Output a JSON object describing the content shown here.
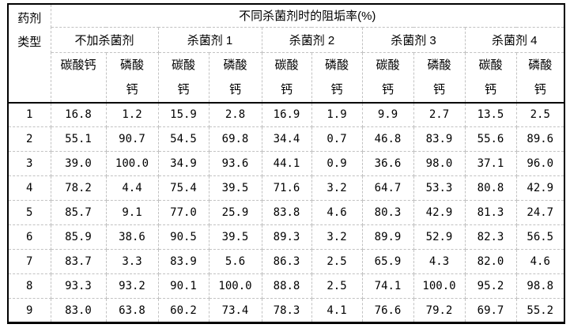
{
  "table": {
    "corner": {
      "lines": [
        "药剂",
        "类型"
      ]
    },
    "main_header": "不同杀菌剂时的阻垢率(%)",
    "groups": [
      {
        "label": "不加杀菌剂",
        "columns": [
          [
            "碳酸钙"
          ],
          [
            "磷酸",
            "钙"
          ]
        ]
      },
      {
        "label": "杀菌剂 1",
        "columns": [
          [
            "碳酸",
            "钙"
          ],
          [
            "磷酸",
            "钙"
          ]
        ]
      },
      {
        "label": "杀菌剂 2",
        "columns": [
          [
            "碳酸",
            "钙"
          ],
          [
            "磷酸",
            "钙"
          ]
        ]
      },
      {
        "label": "杀菌剂 3",
        "columns": [
          [
            "碳酸",
            "钙"
          ],
          [
            "磷酸",
            "钙"
          ]
        ]
      },
      {
        "label": "杀菌剂 4",
        "columns": [
          [
            "碳酸",
            "钙"
          ],
          [
            "磷酸",
            "钙"
          ]
        ]
      }
    ],
    "rows": [
      {
        "id": "1",
        "values": [
          "16.8",
          "1.2",
          "15.9",
          "2.8",
          "16.9",
          "1.9",
          "9.9",
          "2.7",
          "13.5",
          "2.5"
        ]
      },
      {
        "id": "2",
        "values": [
          "55.1",
          "90.7",
          "54.5",
          "69.8",
          "34.4",
          "0.7",
          "46.8",
          "83.9",
          "55.6",
          "89.6"
        ]
      },
      {
        "id": "3",
        "values": [
          "39.0",
          "100.0",
          "34.9",
          "93.6",
          "44.1",
          "0.9",
          "36.6",
          "98.0",
          "37.1",
          "96.0"
        ]
      },
      {
        "id": "4",
        "values": [
          "78.2",
          "4.4",
          "75.4",
          "39.5",
          "71.6",
          "3.2",
          "64.7",
          "53.3",
          "80.8",
          "42.9"
        ]
      },
      {
        "id": "5",
        "values": [
          "85.7",
          "9.1",
          "77.0",
          "25.9",
          "83.8",
          "4.6",
          "80.3",
          "42.9",
          "81.3",
          "24.7"
        ]
      },
      {
        "id": "6",
        "values": [
          "85.9",
          "38.6",
          "90.5",
          "39.5",
          "89.3",
          "3.2",
          "89.9",
          "52.9",
          "82.3",
          "56.5"
        ]
      },
      {
        "id": "7",
        "values": [
          "83.7",
          "3.3",
          "83.9",
          "5.6",
          "86.3",
          "2.5",
          "65.9",
          "4.3",
          "82.0",
          "4.6"
        ]
      },
      {
        "id": "8",
        "values": [
          "93.3",
          "93.2",
          "90.1",
          "100.0",
          "88.8",
          "2.5",
          "74.1",
          "100.0",
          "95.2",
          "98.8"
        ]
      },
      {
        "id": "9",
        "values": [
          "83.0",
          "63.8",
          "60.2",
          "73.4",
          "78.3",
          "4.1",
          "76.6",
          "79.2",
          "69.7",
          "55.2"
        ]
      }
    ],
    "colors": {
      "outer_border": "#000000",
      "grid_line": "#c2c2c2",
      "text": "#000000",
      "background": "#ffffff"
    }
  }
}
